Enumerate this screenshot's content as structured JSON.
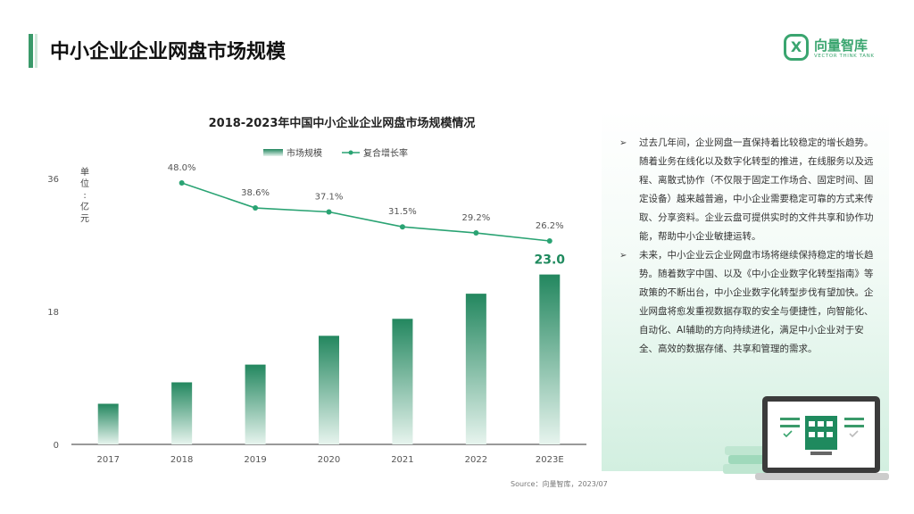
{
  "page_title": "中小企业企业网盘市场规模",
  "logo": {
    "mark": "X",
    "name": "向量智库",
    "sub": "VECTOR THINK TANK"
  },
  "chart_data": {
    "type": "bar+line",
    "title": "2018-2023年中国中小企业企业网盘市场规模情况",
    "legend": {
      "bar": "市场规模",
      "line": "复合增长率",
      "position": "top"
    },
    "ylabel_chars": [
      "单",
      "位",
      ":",
      "亿",
      "元"
    ],
    "y_ticks": [
      0,
      18,
      36
    ],
    "ylim": [
      0,
      36
    ],
    "categories": [
      "2017",
      "2018",
      "2019",
      "2020",
      "2021",
      "2022",
      "2023E"
    ],
    "bar_values": [
      5.5,
      8.4,
      10.8,
      14.7,
      17.0,
      20.4,
      23.0
    ],
    "bar_labels": [
      "",
      "",
      "",
      "",
      "",
      "",
      "23.0"
    ],
    "rate_labels": [
      "",
      "48.0%",
      "38.6%",
      "37.1%",
      "31.5%",
      "29.2%",
      "26.2%"
    ],
    "rate_values": [
      null,
      48.0,
      38.6,
      37.1,
      31.5,
      29.2,
      26.2
    ],
    "colors": {
      "bar_top": "#23875f",
      "bar_bottom": "#e7f4ee",
      "line": "#2aa373",
      "highlight": "#1f8a5e"
    }
  },
  "source": "Source：向量智库，2023/07",
  "panel": {
    "bullet_mark": "➢",
    "bullets": [
      "过去几年间，企业网盘一直保持着比较稳定的增长趋势。随着业务在线化以及数字化转型的推进，在线服务以及远程、离散式协作（不仅限于固定工作场合、固定时间、固定设备）越来越普遍，中小企业需要稳定可靠的方式来传取、分享资料。企业云盘可提供实时的文件共享和协作功能，帮助中小企业敏捷运转。",
      "未来，中小企业云企业网盘市场将继续保持稳定的增长趋势。随着数字中国、以及《中小企业数字化转型指南》等政策的不断出台，中小企业数字化转型步伐有望加快。企业网盘将愈发重视数据存取的安全与便捷性，向智能化、自动化、AI辅助的方向持续进化，满足中小企业对于安全、高效的数据存储、共享和管理的需求。"
    ]
  }
}
